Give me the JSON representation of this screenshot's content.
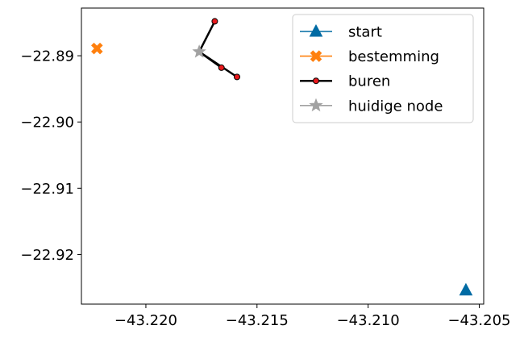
{
  "chart_data": {
    "type": "scatter",
    "title": "",
    "xlabel": "",
    "ylabel": "",
    "xlim": [
      -43.2229,
      -43.2048
    ],
    "ylim": [
      -22.9275,
      -22.8828
    ],
    "xticks": [
      -43.22,
      -43.215,
      -43.21,
      -43.205
    ],
    "xtick_labels": [
      "−43.220",
      "−43.215",
      "−43.210",
      "−43.205"
    ],
    "yticks": [
      -22.89,
      -22.9,
      -22.91,
      -22.92
    ],
    "ytick_labels": [
      "−22.89",
      "−22.90",
      "−22.91",
      "−22.92"
    ],
    "grid": false,
    "legend_position": "top-right",
    "series": [
      {
        "name": "start",
        "marker": "triangle",
        "color": "#006ba4",
        "points": [
          [
            -43.2056,
            -22.9254
          ]
        ]
      },
      {
        "name": "bestemming",
        "marker": "x",
        "color": "#ff800e",
        "points": [
          [
            -43.2222,
            -22.8889
          ]
        ]
      },
      {
        "name": "buren",
        "marker": "circle",
        "color": "#000000",
        "marker_fill": "#e8191d",
        "points": [
          [
            -43.2169,
            -22.8848
          ],
          [
            -43.2166,
            -22.8918
          ],
          [
            -43.2159,
            -22.8932
          ]
        ],
        "origin": [
          -43.2176,
          -22.8894
        ]
      },
      {
        "name": "huidige node",
        "marker": "star",
        "color": "#a2a2a2",
        "points": [
          [
            -43.2176,
            -22.8894
          ]
        ]
      }
    ]
  }
}
